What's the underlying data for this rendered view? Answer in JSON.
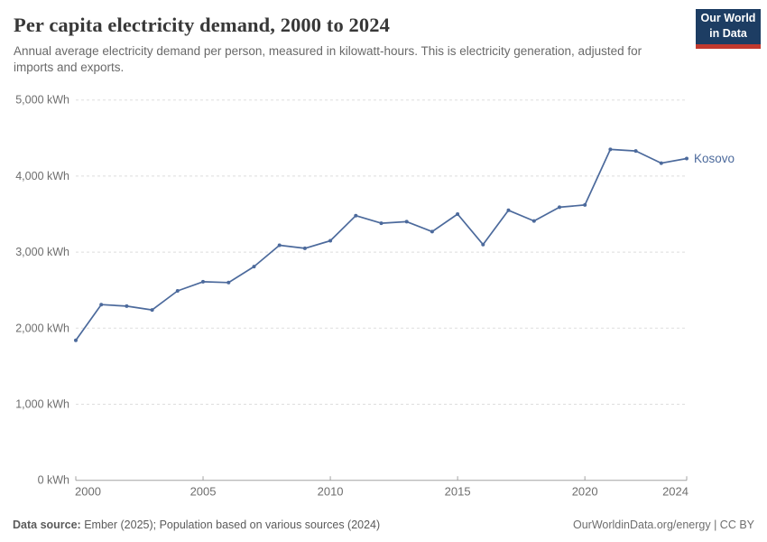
{
  "header": {
    "title": "Per capita electricity demand, 2000 to 2024",
    "subtitle": "Annual average electricity demand per person, measured in kilowatt-hours. This is electricity generation, adjusted for imports and exports.",
    "logo": {
      "line1": "Our World",
      "line2": "in Data",
      "bg_color": "#1d3d63",
      "stripe_color": "#c1392e"
    }
  },
  "chart_data": {
    "type": "line",
    "title": "Per capita electricity demand, 2000 to 2024",
    "xlabel": "",
    "ylabel": "",
    "xlim": [
      2000,
      2024
    ],
    "ylim": [
      0,
      5000
    ],
    "grid": "horizontal-dashed",
    "legend_position": "end-of-line-label",
    "x": [
      2000,
      2001,
      2002,
      2003,
      2004,
      2005,
      2006,
      2007,
      2008,
      2009,
      2010,
      2011,
      2012,
      2013,
      2014,
      2015,
      2016,
      2017,
      2018,
      2019,
      2020,
      2021,
      2022,
      2023,
      2024
    ],
    "series": [
      {
        "name": "Kosovo",
        "color": "#4c6a9c",
        "unit": "kWh",
        "values": [
          1840,
          2310,
          2290,
          2240,
          2490,
          2610,
          2600,
          2810,
          3090,
          3050,
          3150,
          3480,
          3380,
          3400,
          3270,
          3500,
          3100,
          3550,
          3410,
          3590,
          3620,
          4350,
          4330,
          4170,
          4230
        ]
      }
    ],
    "x_ticks": [
      2000,
      2005,
      2010,
      2015,
      2020,
      2024
    ],
    "x_tick_labels": [
      "2000",
      "2005",
      "2010",
      "2015",
      "2020",
      "2024"
    ],
    "y_ticks": [
      0,
      1000,
      2000,
      3000,
      4000,
      5000
    ],
    "y_tick_labels": [
      "0 kWh",
      "1,000 kWh",
      "2,000 kWh",
      "3,000 kWh",
      "4,000 kWh",
      "5,000 kWh"
    ],
    "axis_color": "#a3a3a3",
    "gridline_color": "#dddddd",
    "tick_label_color": "#6e6e6e"
  },
  "footer": {
    "source_label": "Data source:",
    "source_text": " Ember (2025); Population based on various sources (2024)",
    "right_text": "OurWorldinData.org/energy | CC BY"
  }
}
